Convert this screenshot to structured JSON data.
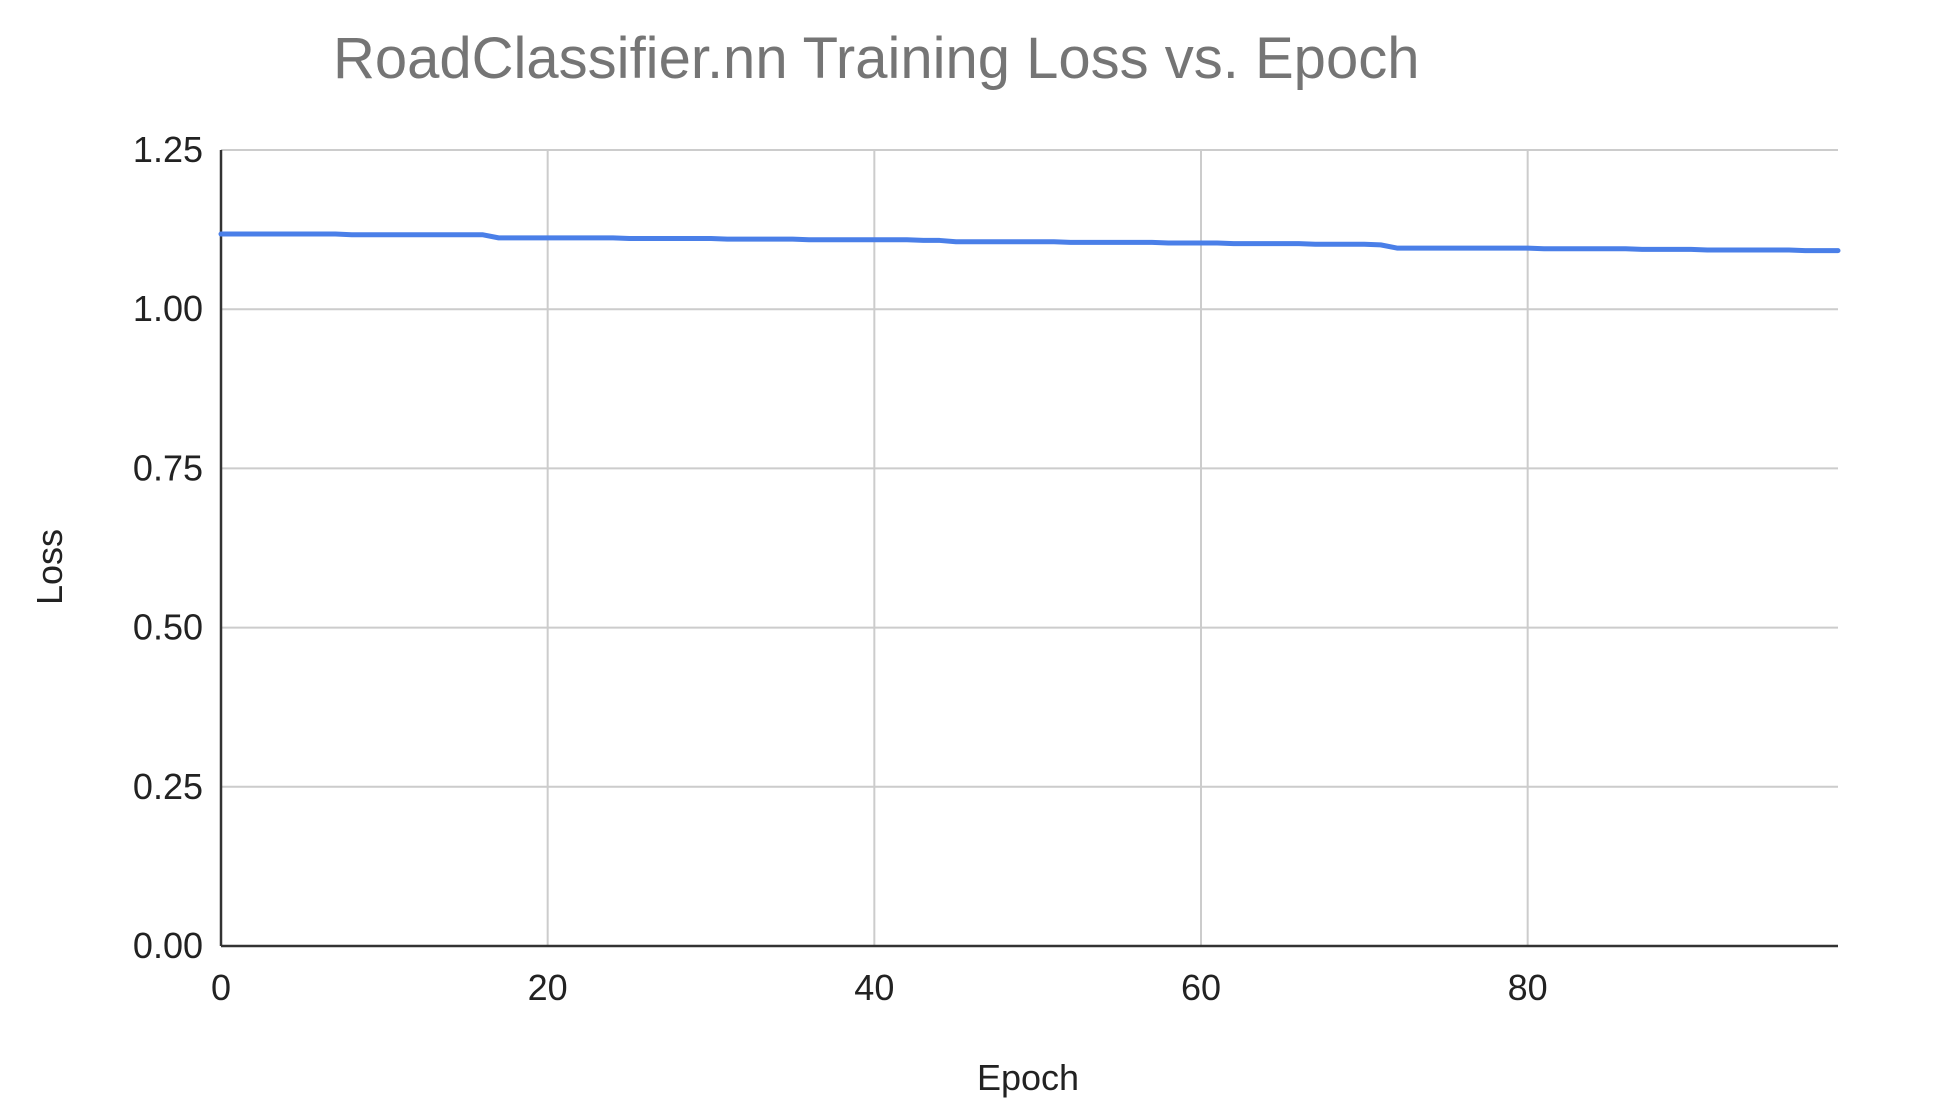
{
  "colors": {
    "series": "#4a7fe8",
    "title": "#757575",
    "grid": "#cccccc",
    "axis": "#333333",
    "text": "#222222"
  },
  "chart_data": {
    "type": "line",
    "title": "RoadClassifier.nn Training Loss vs. Epoch",
    "xlabel": "Epoch",
    "ylabel": "Loss",
    "xlim": [
      0,
      99
    ],
    "ylim": [
      0,
      1.25
    ],
    "x_ticks": [
      0,
      20,
      40,
      60,
      80
    ],
    "x_tick_labels": [
      "0",
      "20",
      "40",
      "60",
      "80"
    ],
    "y_ticks": [
      0,
      0.25,
      0.5,
      0.75,
      1.0,
      1.25
    ],
    "y_tick_labels": [
      "0.00",
      "0.25",
      "0.50",
      "0.75",
      "1.00",
      "1.25"
    ],
    "grid": true,
    "legend": "none",
    "series": [
      {
        "x": [
          0,
          1,
          2,
          3,
          4,
          5,
          6,
          7,
          8,
          9,
          10,
          11,
          12,
          13,
          14,
          15,
          16,
          17,
          18,
          19,
          20,
          21,
          22,
          23,
          24,
          25,
          26,
          27,
          28,
          29,
          30,
          31,
          32,
          33,
          34,
          35,
          36,
          37,
          38,
          39,
          40,
          41,
          42,
          43,
          44,
          45,
          46,
          47,
          48,
          49,
          50,
          51,
          52,
          53,
          54,
          55,
          56,
          57,
          58,
          59,
          60,
          61,
          62,
          63,
          64,
          65,
          66,
          67,
          68,
          69,
          70,
          71,
          72,
          73,
          74,
          75,
          76,
          77,
          78,
          79,
          80,
          81,
          82,
          83,
          84,
          85,
          86,
          87,
          88,
          89,
          90,
          91,
          92,
          93,
          94,
          95,
          96,
          97,
          98,
          99
        ],
        "values": [
          1.118,
          1.118,
          1.118,
          1.118,
          1.118,
          1.118,
          1.118,
          1.118,
          1.117,
          1.117,
          1.117,
          1.117,
          1.117,
          1.117,
          1.117,
          1.117,
          1.117,
          1.112,
          1.112,
          1.112,
          1.112,
          1.112,
          1.112,
          1.112,
          1.112,
          1.111,
          1.111,
          1.111,
          1.111,
          1.111,
          1.111,
          1.11,
          1.11,
          1.11,
          1.11,
          1.11,
          1.109,
          1.109,
          1.109,
          1.109,
          1.109,
          1.109,
          1.109,
          1.108,
          1.108,
          1.106,
          1.106,
          1.106,
          1.106,
          1.106,
          1.106,
          1.106,
          1.105,
          1.105,
          1.105,
          1.105,
          1.105,
          1.105,
          1.104,
          1.104,
          1.104,
          1.104,
          1.103,
          1.103,
          1.103,
          1.103,
          1.103,
          1.102,
          1.102,
          1.102,
          1.102,
          1.101,
          1.096,
          1.096,
          1.096,
          1.096,
          1.096,
          1.096,
          1.096,
          1.096,
          1.096,
          1.095,
          1.095,
          1.095,
          1.095,
          1.095,
          1.095,
          1.094,
          1.094,
          1.094,
          1.094,
          1.093,
          1.093,
          1.093,
          1.093,
          1.093,
          1.093,
          1.092,
          1.092,
          1.092
        ]
      }
    ]
  }
}
